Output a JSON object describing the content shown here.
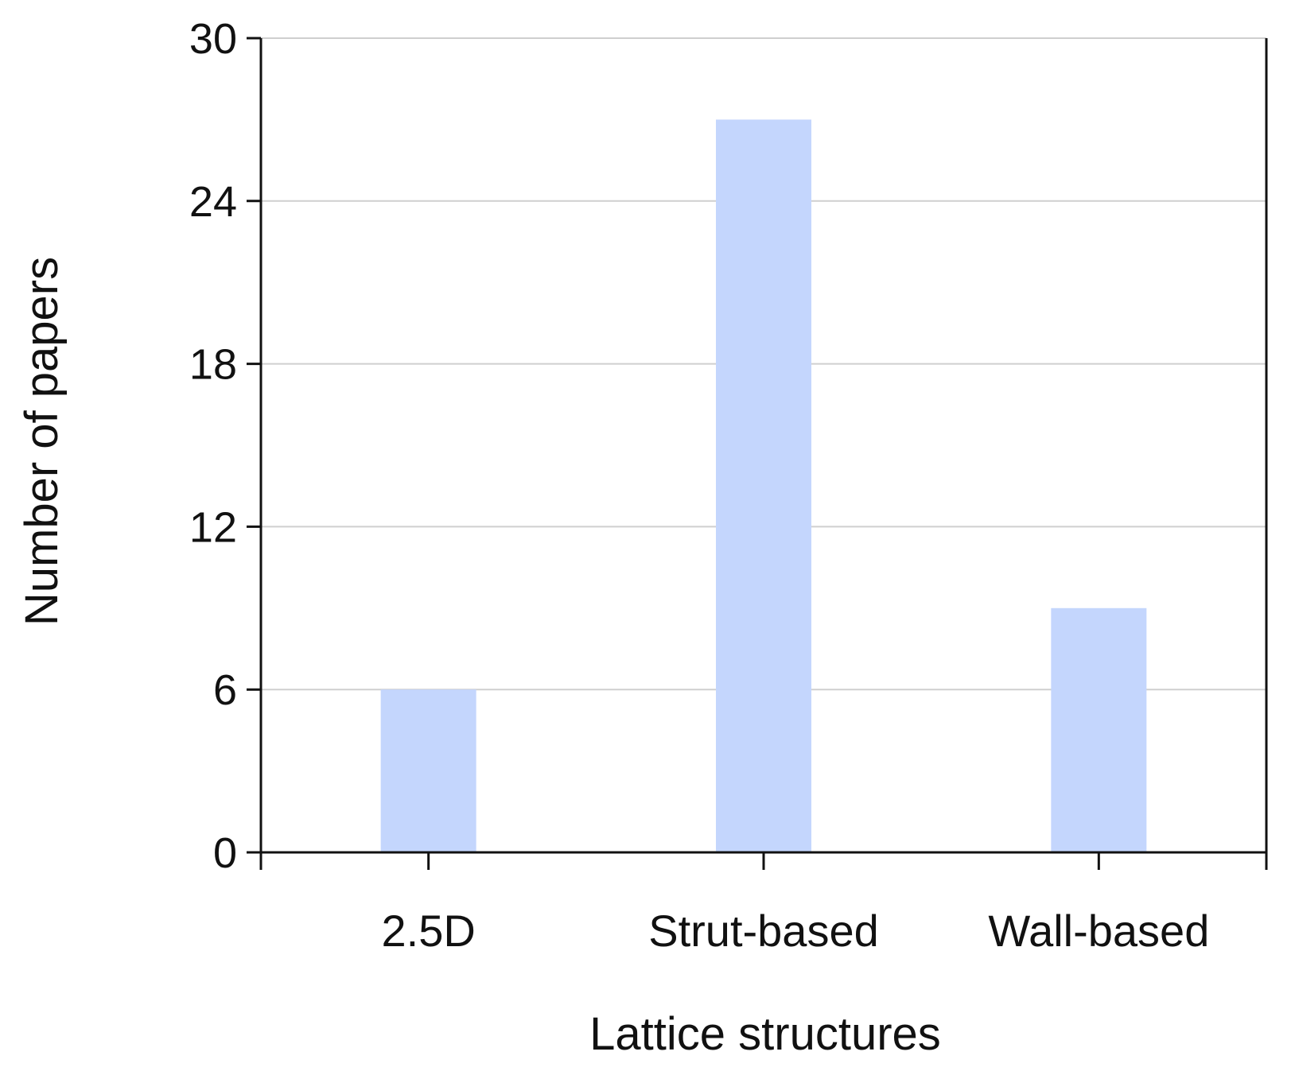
{
  "chart_data": {
    "type": "bar",
    "categories": [
      "2.5D",
      "Strut-based",
      "Wall-based"
    ],
    "values": [
      6,
      27,
      9
    ],
    "xlabel": "Lattice structures",
    "ylabel": "Number of papers",
    "ylim": [
      0,
      30
    ],
    "yticks": [
      "0",
      "6",
      "12",
      "18",
      "24",
      "30"
    ],
    "grid": true,
    "legend": "none",
    "colors": {
      "bar": "#c4d6fd",
      "grid": "#cfcfcf",
      "axis": "#111111"
    }
  }
}
